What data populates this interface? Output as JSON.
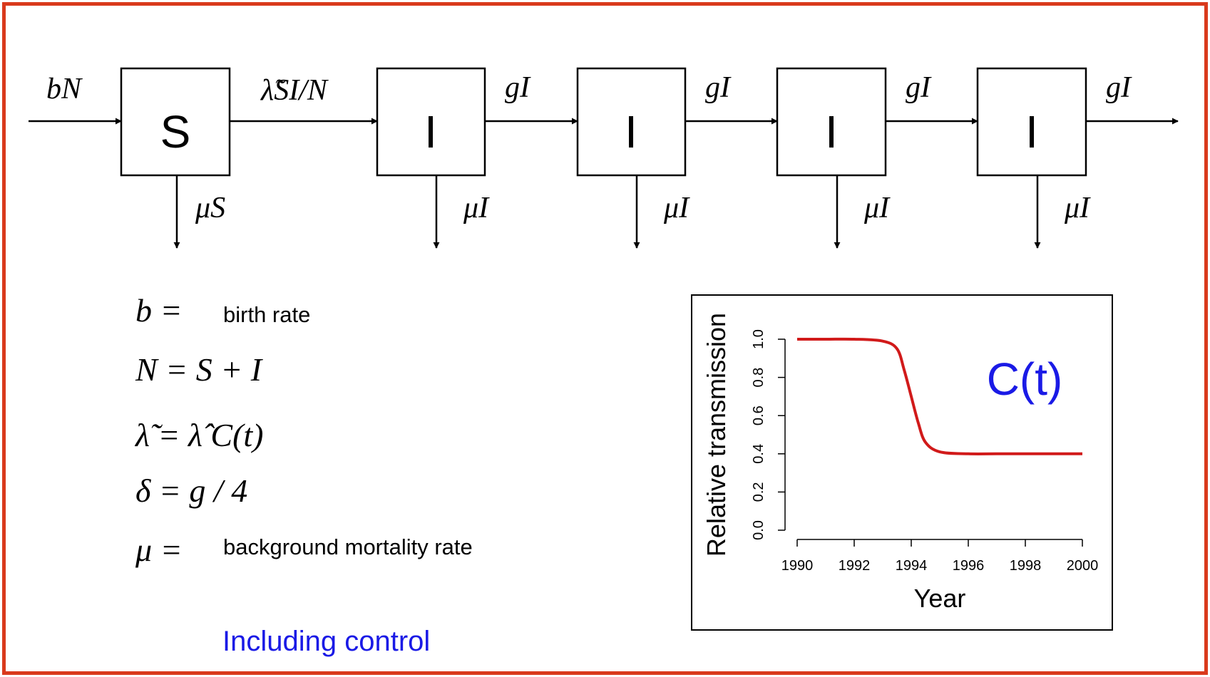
{
  "colors": {
    "border": "#d93a1c",
    "curve": "#d11a1a",
    "blue_text": "#1a1ae6",
    "ink": "#000000"
  },
  "compartments": [
    {
      "label": "S"
    },
    {
      "label": "I"
    },
    {
      "label": "I"
    },
    {
      "label": "I"
    },
    {
      "label": "I"
    }
  ],
  "flows": {
    "inflow": "bN",
    "infection": "λ̃SI/N",
    "progression": [
      "gI",
      "gI",
      "gI",
      "gI"
    ],
    "mortality": [
      "μS",
      "μI",
      "μI",
      "μI",
      "μI"
    ]
  },
  "legend": [
    {
      "symbol": "b =",
      "text": "birth rate"
    },
    {
      "symbol": "N = S + I",
      "text": ""
    },
    {
      "symbol": "λ̃ = λ̂ C(t)",
      "text": ""
    },
    {
      "symbol": "δ = g / 4",
      "text": ""
    },
    {
      "symbol": "μ =",
      "text": "background mortality rate"
    }
  ],
  "footer": "Including control",
  "chart_data": {
    "type": "line",
    "xlabel": "Year",
    "ylabel": "Relative transmission",
    "annotation": "C(t)",
    "xlim": [
      1990,
      2000
    ],
    "ylim": [
      0,
      1
    ],
    "xticks": [
      "1990",
      "1992",
      "1994",
      "1996",
      "1998",
      "2000"
    ],
    "yticks": [
      "0.0",
      "0.2",
      "0.4",
      "0.6",
      "0.8",
      "1.0"
    ],
    "series": [
      {
        "x": [
          1990,
          1991,
          1992,
          1993,
          1993.5,
          1993.75,
          1994,
          1994.25,
          1994.5,
          1995,
          1996,
          1997,
          1998,
          1999,
          2000
        ],
        "values": [
          1.0,
          1.0,
          1.0,
          0.99,
          0.95,
          0.84,
          0.7,
          0.56,
          0.46,
          0.41,
          0.4,
          0.4,
          0.4,
          0.4,
          0.4
        ]
      }
    ]
  }
}
